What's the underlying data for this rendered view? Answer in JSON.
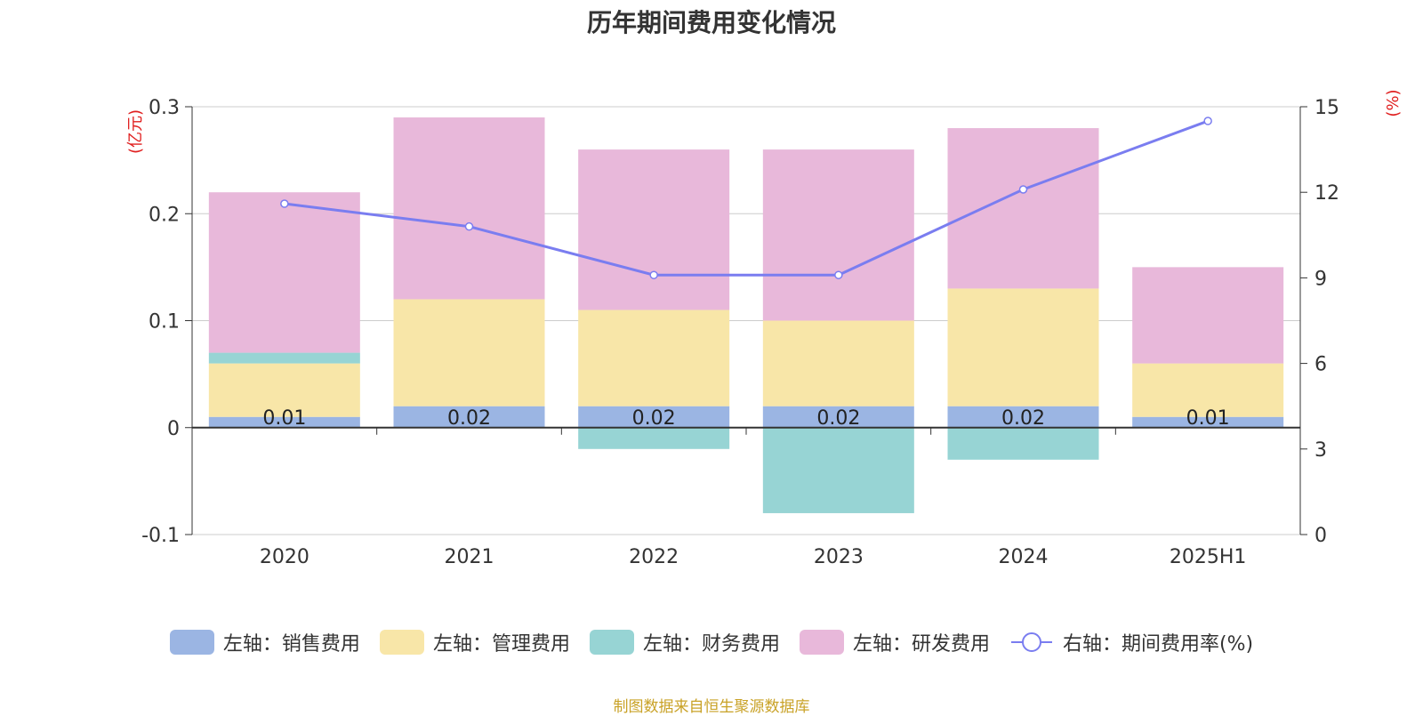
{
  "chart_data": {
    "type": "bar",
    "title": "历年期间费用变化情况",
    "categories": [
      "2020",
      "2021",
      "2022",
      "2023",
      "2024",
      "2025H1"
    ],
    "series": [
      {
        "name": "左轴：销售费用",
        "values": [
          0.01,
          0.02,
          0.02,
          0.02,
          0.02,
          0.01
        ],
        "color": "#9bb5e3",
        "axis": "left",
        "kind": "bar"
      },
      {
        "name": "左轴：管理费用",
        "values": [
          0.05,
          0.1,
          0.09,
          0.08,
          0.11,
          0.05
        ],
        "color": "#f8e6a8",
        "axis": "left",
        "kind": "bar"
      },
      {
        "name": "左轴：财务费用",
        "values": [
          0.01,
          0.0,
          -0.02,
          -0.08,
          -0.03,
          0.0
        ],
        "color": "#97d4d4",
        "axis": "left",
        "kind": "bar"
      },
      {
        "name": "左轴：研发费用",
        "values": [
          0.15,
          0.17,
          0.15,
          0.16,
          0.15,
          0.09
        ],
        "color": "#e8b8da",
        "axis": "left",
        "kind": "bar"
      },
      {
        "name": "右轴：期间费用率(%)",
        "values": [
          11.6,
          10.8,
          9.1,
          9.1,
          12.1,
          14.5
        ],
        "color": "#7a7df0",
        "axis": "right",
        "kind": "line"
      }
    ],
    "data_labels": [
      "0.01",
      "0.02",
      "0.02",
      "0.02",
      "0.02",
      "0.01"
    ],
    "y_left": {
      "label": "(亿元)",
      "ticks": [
        "-0.1",
        "0",
        "0.1",
        "0.2",
        "0.3"
      ],
      "min": -0.1,
      "max": 0.3
    },
    "y_right": {
      "label": "(%)",
      "ticks": [
        "0",
        "3",
        "6",
        "9",
        "12",
        "15"
      ],
      "min": 0,
      "max": 15
    },
    "grid": true,
    "legend_position": "bottom",
    "source": "制图数据来自恒生聚源数据库"
  }
}
